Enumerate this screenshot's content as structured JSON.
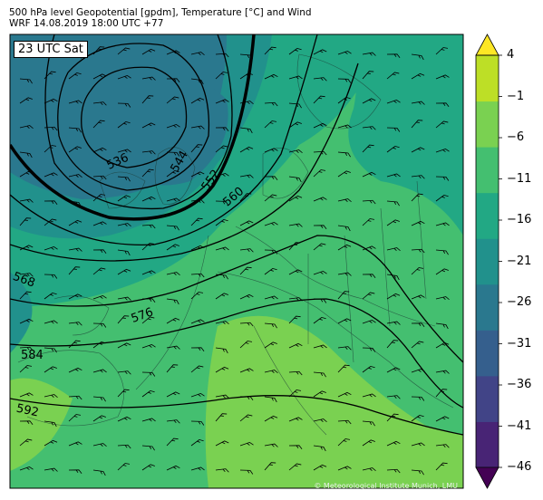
{
  "header": {
    "line1": "500 hPa level Geopotential [gpdm], Temperature [°C] and Wind",
    "line2": "WRF 14.08.2019 18:00 UTC +77"
  },
  "map": {
    "time_badge": "23 UTC Sat",
    "credit": "© Meteorological Institute Munich, LMU",
    "contour_labels": [
      "536",
      "544",
      "552",
      "560",
      "568",
      "576",
      "584",
      "592"
    ]
  },
  "colorbar": {
    "ticks": [
      "4",
      "−1",
      "−6",
      "−11",
      "−16",
      "−21",
      "−26",
      "−31",
      "−36",
      "−41",
      "−46"
    ],
    "colors": [
      "#440154",
      "#482475",
      "#414487",
      "#355f8d",
      "#2a788e",
      "#21918c",
      "#22a884",
      "#44bf70",
      "#7ad151",
      "#bddf26",
      "#fde725"
    ]
  }
}
